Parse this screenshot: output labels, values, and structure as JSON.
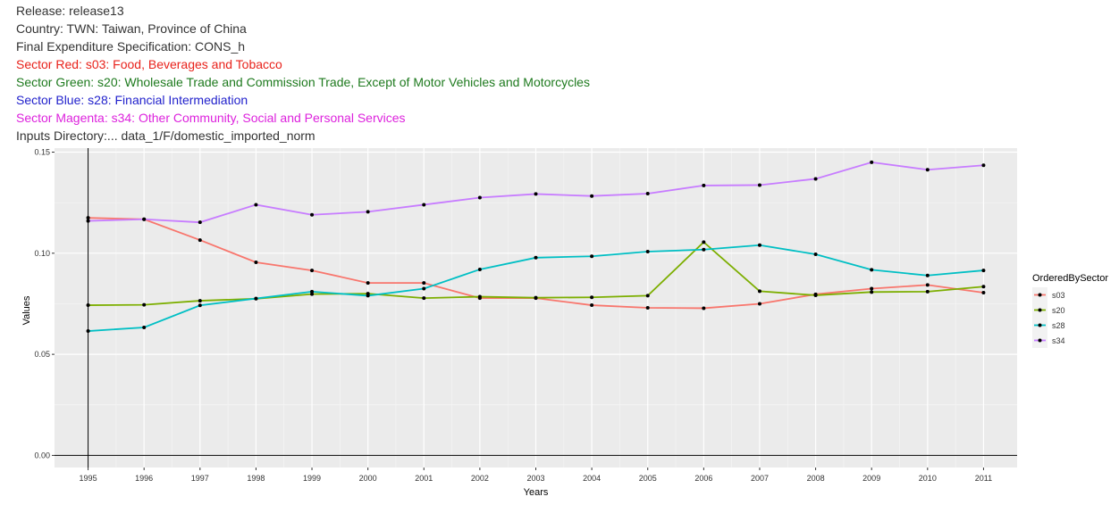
{
  "header": {
    "lines": [
      {
        "text": "Release: release13",
        "color": "#333333"
      },
      {
        "text": "Country: TWN: Taiwan, Province of China",
        "color": "#333333"
      },
      {
        "text": "Final Expenditure Specification: CONS_h",
        "color": "#333333"
      },
      {
        "text": "Sector Red: s03: Food, Beverages and Tobacco",
        "color": "#e8221b"
      },
      {
        "text": "Sector Green: s20: Wholesale Trade and Commission Trade, Except of Motor Vehicles and Motorcycles",
        "color": "#1e7a1e"
      },
      {
        "text": "Sector Blue: s28: Financial Intermediation",
        "color": "#2222cc"
      },
      {
        "text": "Sector Magenta: s34: Other Community, Social and Personal Services",
        "color": "#dd22dd"
      },
      {
        "text": "Inputs Directory:... data_1/F/domestic_imported_norm",
        "color": "#333333"
      }
    ]
  },
  "chart_data": {
    "type": "line",
    "x": [
      1995,
      1996,
      1997,
      1998,
      1999,
      2000,
      2001,
      2002,
      2003,
      2004,
      2005,
      2006,
      2007,
      2008,
      2009,
      2010,
      2011
    ],
    "x_tick_labels": [
      "1995",
      "1996",
      "1997",
      "1998",
      "1999",
      "2000",
      "2001",
      "2002",
      "2003",
      "2004",
      "2005",
      "2006",
      "2007",
      "2008",
      "2009",
      "2010",
      "2011"
    ],
    "y_tick_values": [
      0,
      0.05,
      0.1,
      0.15
    ],
    "y_tick_labels": [
      "0.00",
      "0.05",
      "0.10",
      "0.15"
    ],
    "xlabel": "Years",
    "ylabel": "Values",
    "xlim": [
      1994.55,
      1995.0
    ],
    "ylim": [
      -0.006,
      0.152
    ],
    "grid": true,
    "legend": {
      "title": "OrderedBySector",
      "placement": "right"
    },
    "series": [
      {
        "name": "s03",
        "color": "#f8766d",
        "values": [
          0.1175,
          0.1168,
          0.1065,
          0.0955,
          0.0915,
          0.0853,
          0.0853,
          0.0778,
          0.0778,
          0.0743,
          0.073,
          0.0728,
          0.075,
          0.0797,
          0.0825,
          0.0843,
          0.0805
        ]
      },
      {
        "name": "s20",
        "color": "#7cae00",
        "values": [
          0.0743,
          0.0745,
          0.0765,
          0.0775,
          0.0798,
          0.08,
          0.0778,
          0.0785,
          0.078,
          0.0782,
          0.079,
          0.1055,
          0.0812,
          0.0792,
          0.0808,
          0.081,
          0.0835
        ]
      },
      {
        "name": "s28",
        "color": "#00bfc4",
        "values": [
          0.0615,
          0.0633,
          0.0742,
          0.0776,
          0.081,
          0.079,
          0.0825,
          0.092,
          0.0978,
          0.0985,
          0.1008,
          0.1018,
          0.104,
          0.0995,
          0.0918,
          0.089,
          0.0915
        ]
      },
      {
        "name": "s34",
        "color": "#c77cff",
        "values": [
          0.116,
          0.1168,
          0.1153,
          0.124,
          0.119,
          0.1205,
          0.124,
          0.1275,
          0.1293,
          0.1283,
          0.1295,
          0.1335,
          0.1337,
          0.1368,
          0.145,
          0.1413,
          0.1435
        ]
      }
    ]
  }
}
